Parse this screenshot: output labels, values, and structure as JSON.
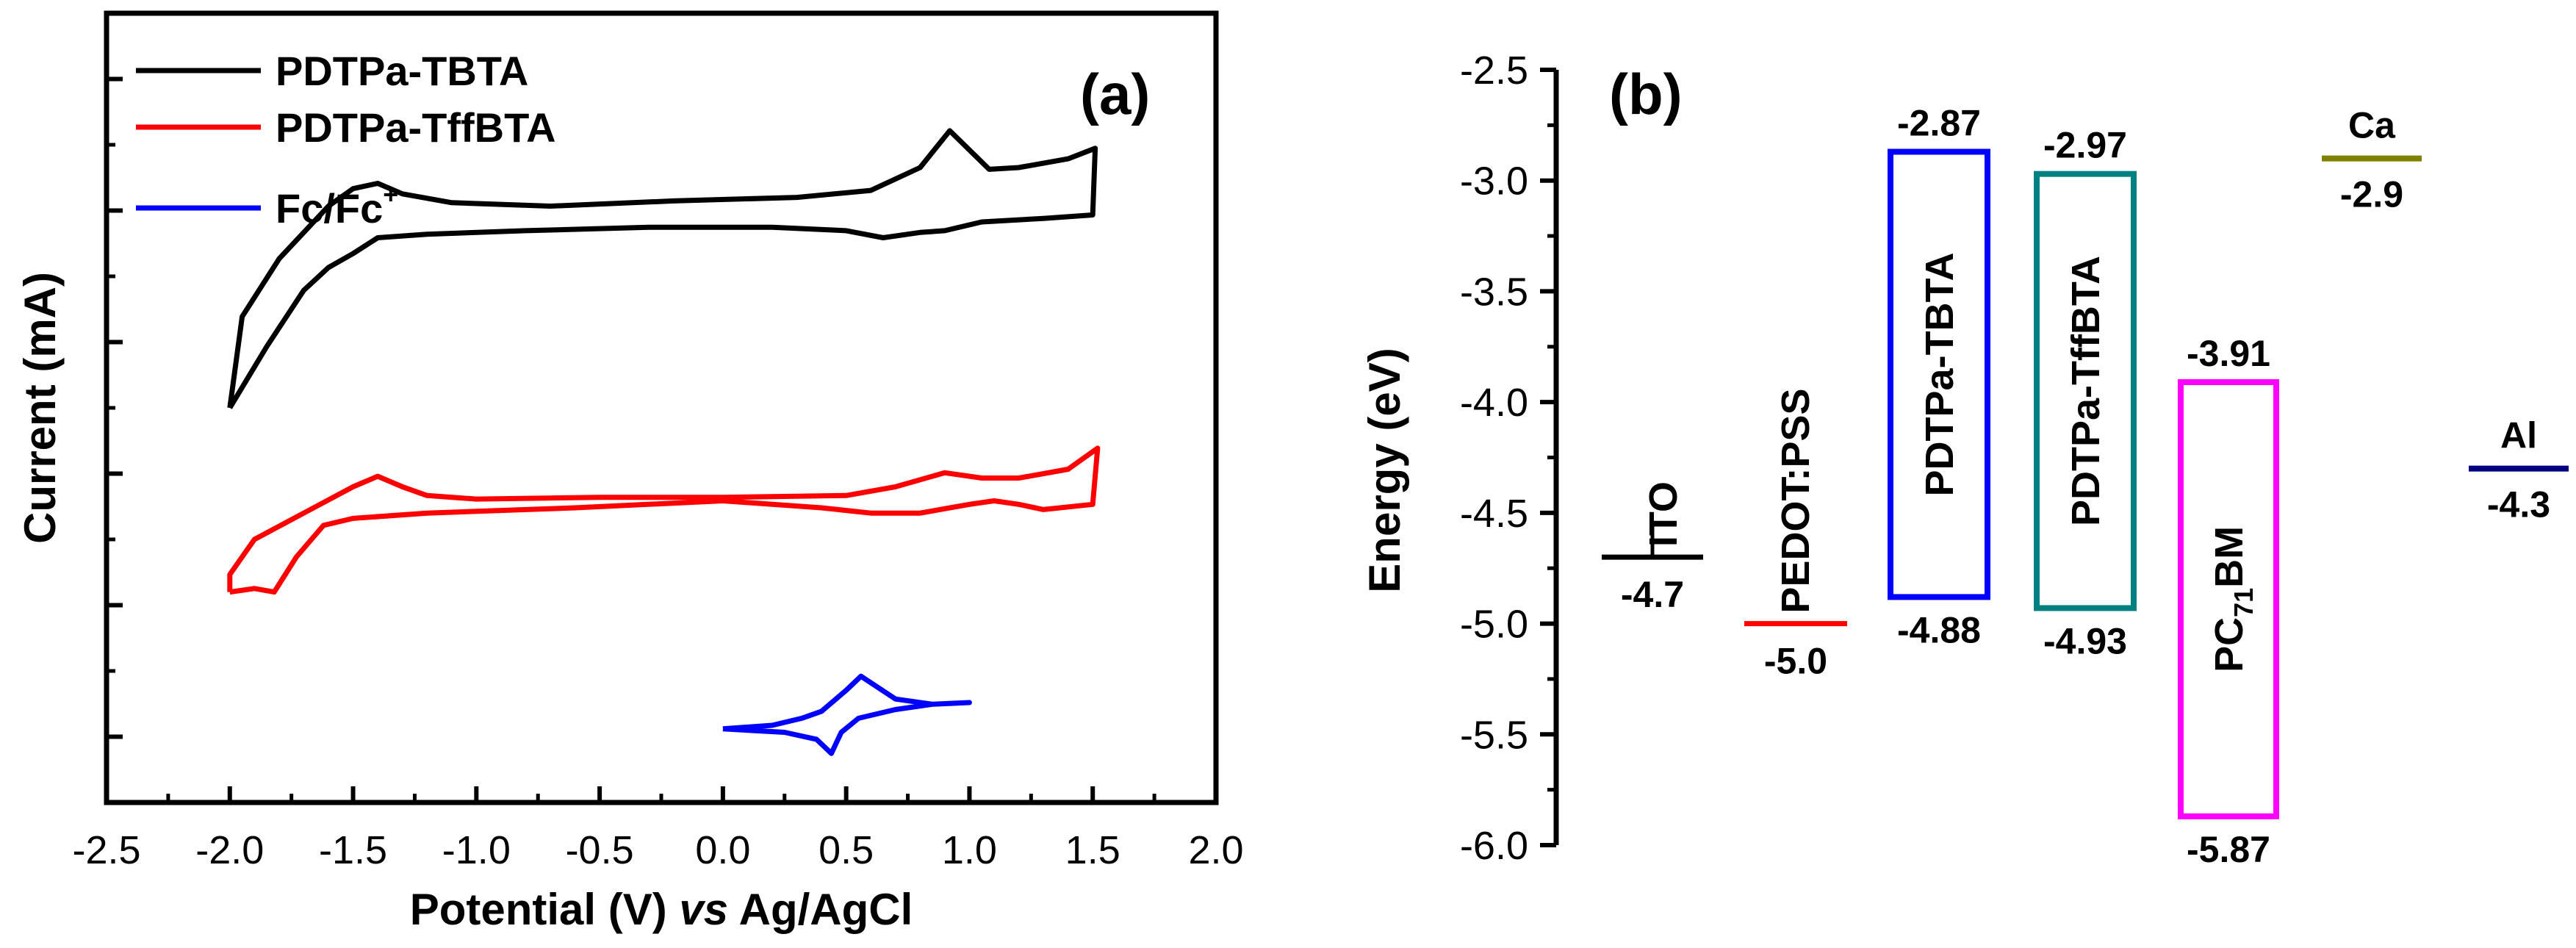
{
  "chart_data": [
    {
      "panel": "(a)",
      "type": "line",
      "xlabel_parts": [
        "Potential (V) ",
        "vs",
        " Ag/AgCl"
      ],
      "ylabel": "Current (mA)",
      "xlim": [
        -2.5,
        2.0
      ],
      "ylim": [
        -1.2,
        3.3
      ],
      "x_ticks": [
        "-2.5",
        "-2.0",
        "-1.5",
        "-1.0",
        "-0.5",
        "0.0",
        "0.5",
        "1.0",
        "1.5",
        "2.0"
      ],
      "legend": [
        {
          "name": "PDTPa-TBTA",
          "color": "#000000"
        },
        {
          "name": "PDTPa-TffBTA",
          "color": "#ff0000"
        },
        {
          "name": "Fc/Fc",
          "sup": "+",
          "color": "#0000ff"
        }
      ],
      "series": [
        {
          "name": "PDTPa-TBTA",
          "color": "#000000",
          "points": [
            [
              -2.0,
              1.05
            ],
            [
              -1.85,
              1.4
            ],
            [
              -1.7,
              1.72
            ],
            [
              -1.6,
              1.85
            ],
            [
              -1.5,
              1.93
            ],
            [
              -1.4,
              2.02
            ],
            [
              -1.2,
              2.04
            ],
            [
              -0.8,
              2.06
            ],
            [
              -0.3,
              2.08
            ],
            [
              0.2,
              2.08
            ],
            [
              0.5,
              2.06
            ],
            [
              0.65,
              2.02
            ],
            [
              0.8,
              2.05
            ],
            [
              0.9,
              2.06
            ],
            [
              1.05,
              2.11
            ],
            [
              1.3,
              2.13
            ],
            [
              1.5,
              2.15
            ],
            [
              1.51,
              2.53
            ],
            [
              1.4,
              2.47
            ],
            [
              1.2,
              2.42
            ],
            [
              1.08,
              2.41
            ],
            [
              0.92,
              2.63
            ],
            [
              0.8,
              2.42
            ],
            [
              0.6,
              2.29
            ],
            [
              0.3,
              2.25
            ],
            [
              -0.2,
              2.23
            ],
            [
              -0.7,
              2.2
            ],
            [
              -1.1,
              2.22
            ],
            [
              -1.3,
              2.27
            ],
            [
              -1.4,
              2.33
            ],
            [
              -1.5,
              2.3
            ],
            [
              -1.6,
              2.2
            ],
            [
              -1.8,
              1.9
            ],
            [
              -1.95,
              1.57
            ],
            [
              -2.0,
              1.05
            ]
          ]
        },
        {
          "name": "PDTPa-TffBTA",
          "color": "#ff0000",
          "points": [
            [
              -2.0,
              0.0
            ],
            [
              -1.9,
              0.02
            ],
            [
              -1.82,
              0.0
            ],
            [
              -1.73,
              0.2
            ],
            [
              -1.62,
              0.38
            ],
            [
              -1.5,
              0.42
            ],
            [
              -1.2,
              0.45
            ],
            [
              -0.6,
              0.48
            ],
            [
              0.0,
              0.52
            ],
            [
              0.4,
              0.48
            ],
            [
              0.6,
              0.45
            ],
            [
              0.8,
              0.45
            ],
            [
              1.0,
              0.5
            ],
            [
              1.1,
              0.52
            ],
            [
              1.2,
              0.5
            ],
            [
              1.3,
              0.47
            ],
            [
              1.5,
              0.5
            ],
            [
              1.52,
              0.82
            ],
            [
              1.4,
              0.7
            ],
            [
              1.2,
              0.65
            ],
            [
              1.05,
              0.65
            ],
            [
              0.9,
              0.68
            ],
            [
              0.7,
              0.6
            ],
            [
              0.5,
              0.55
            ],
            [
              0.0,
              0.54
            ],
            [
              -0.5,
              0.54
            ],
            [
              -1.0,
              0.53
            ],
            [
              -1.2,
              0.55
            ],
            [
              -1.3,
              0.6
            ],
            [
              -1.4,
              0.66
            ],
            [
              -1.5,
              0.6
            ],
            [
              -1.7,
              0.45
            ],
            [
              -1.9,
              0.3
            ],
            [
              -2.0,
              0.1
            ],
            [
              -2.0,
              0.0
            ]
          ]
        },
        {
          "name": "Fc/Fc+",
          "color": "#0000ff",
          "points": [
            [
              0.0,
              -0.78
            ],
            [
              0.2,
              -0.76
            ],
            [
              0.32,
              -0.72
            ],
            [
              0.4,
              -0.68
            ],
            [
              0.5,
              -0.56
            ],
            [
              0.56,
              -0.48
            ],
            [
              0.7,
              -0.61
            ],
            [
              0.85,
              -0.64
            ],
            [
              1.0,
              -0.63
            ],
            [
              0.85,
              -0.64
            ],
            [
              0.7,
              -0.67
            ],
            [
              0.55,
              -0.72
            ],
            [
              0.48,
              -0.8
            ],
            [
              0.44,
              -0.92
            ],
            [
              0.38,
              -0.84
            ],
            [
              0.25,
              -0.8
            ],
            [
              0.0,
              -0.78
            ]
          ]
        }
      ]
    },
    {
      "panel": "(b)",
      "type": "energy-level diagram",
      "ylabel": "Energy (eV)",
      "ylim": [
        -6.0,
        -2.5
      ],
      "y_ticks": [
        "-2.5",
        "-3.0",
        "-3.5",
        "-4.0",
        "-4.5",
        "-5.0",
        "-5.5",
        "-6.0"
      ],
      "levels": [
        {
          "name": "ITO",
          "value": -4.7,
          "value_label": "-4.7",
          "color": "#000000"
        },
        {
          "name": "PEDOT:PSS",
          "value": -5.0,
          "value_label": "-5.0",
          "color": "#ff0000"
        },
        {
          "name": "Ca",
          "value": -2.9,
          "value_label": "-2.9",
          "color": "#808000"
        },
        {
          "name": "Al",
          "value": -4.3,
          "value_label": "-4.3",
          "color": "#000080"
        }
      ],
      "boxes": [
        {
          "name": "PDTPa-TBTA",
          "lumo": -2.87,
          "homo": -4.88,
          "lumo_label": "-2.87",
          "homo_label": "-4.88",
          "color": "#0000ff"
        },
        {
          "name": "PDTPa-TffBTA",
          "lumo": -2.97,
          "homo": -4.93,
          "lumo_label": "-2.97",
          "homo_label": "-4.93",
          "color": "#008080"
        },
        {
          "name": "PC",
          "sub": "71",
          "name_tail": "BM",
          "lumo": -3.91,
          "homo": -5.87,
          "lumo_label": "-3.91",
          "homo_label": "-5.87",
          "color": "#ff00ff"
        }
      ]
    }
  ]
}
